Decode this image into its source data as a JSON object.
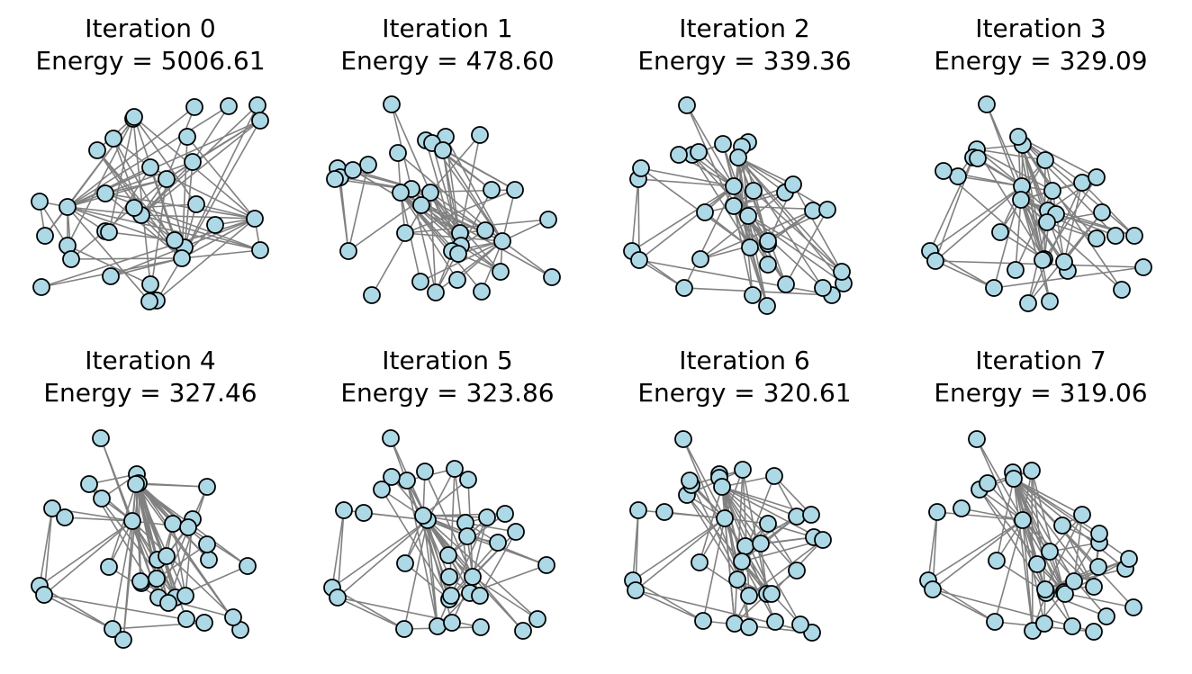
{
  "style": {
    "node_fill": "#add8e6",
    "node_stroke": "#000000",
    "edge_color": "#808080",
    "background": "#ffffff"
  },
  "panels": [
    {
      "iteration": "Iteration 0",
      "energy": "Energy = 5006.61"
    },
    {
      "iteration": "Iteration 1",
      "energy": "Energy = 478.60"
    },
    {
      "iteration": "Iteration 2",
      "energy": "Energy = 339.36"
    },
    {
      "iteration": "Iteration 3",
      "energy": "Energy = 329.09"
    },
    {
      "iteration": "Iteration 4",
      "energy": "Energy = 327.46"
    },
    {
      "iteration": "Iteration 5",
      "energy": "Energy = 323.86"
    },
    {
      "iteration": "Iteration 6",
      "energy": "Energy = 320.61"
    },
    {
      "iteration": "Iteration 7",
      "energy": "Energy = 319.06"
    }
  ]
}
